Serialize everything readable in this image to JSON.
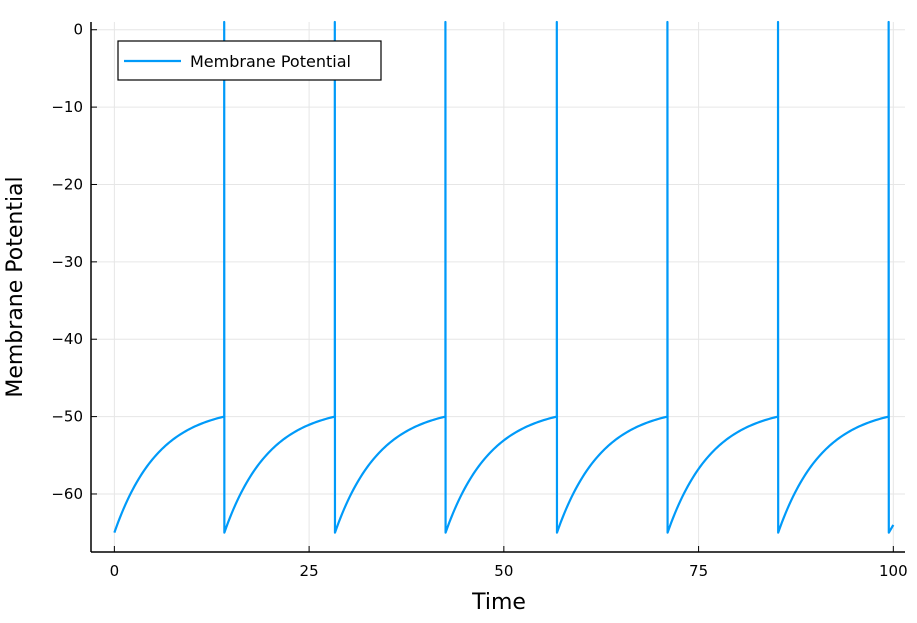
{
  "chart_data": {
    "type": "line",
    "title": "",
    "xlabel": "Time",
    "ylabel": "Membrane Potential",
    "xlim": [
      -3,
      101.5
    ],
    "ylim": [
      -67.5,
      1
    ],
    "xticks": [
      0,
      25,
      50,
      75,
      100
    ],
    "yticks": [
      0,
      -10,
      -20,
      -30,
      -40,
      -50,
      -60
    ],
    "xtick_labels": [
      "0",
      "25",
      "50",
      "75",
      "100"
    ],
    "ytick_labels": [
      "0",
      "−10",
      "−20",
      "−30",
      "−40",
      "−50",
      "−60"
    ],
    "grid": true,
    "legend_position": "top-left",
    "series": [
      {
        "name": "Membrane Potential",
        "color": "#009af9",
        "rest_potential": -65,
        "threshold": -50,
        "spike_peak": 1,
        "spike_times": [
          14.1,
          28.3,
          42.5,
          56.8,
          71.0,
          85.2,
          99.4
        ],
        "end_time": 100,
        "end_value": -64
      }
    ]
  }
}
